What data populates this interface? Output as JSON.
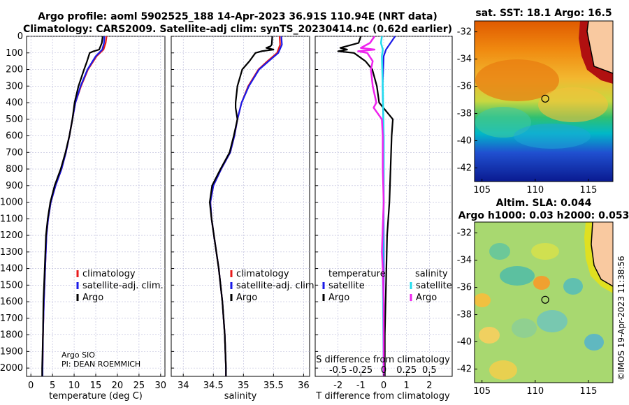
{
  "header": {
    "title_line1": "Argo profile: aoml 5902525_188 14-Apr-2023 36.91S 110.94E (NRT data)",
    "title_line2": "Climatology: CARS2009. Satellite-adj clim: synTS_20230414.nc (0.62d earlier)"
  },
  "colors": {
    "climatology": "#e8191a",
    "satellite_adj": "#1a1ae8",
    "argo": "#000000",
    "salinity_satellite": "#22ddee",
    "salinity_argo": "#ee22ee",
    "grid": "#b8b8d8"
  },
  "chart_data": [
    {
      "type": "line",
      "panel": "temperature",
      "xlabel": "temperature (deg C)",
      "xlim": [
        -1,
        31
      ],
      "xticks": [
        0,
        5,
        10,
        15,
        20,
        25,
        30
      ],
      "ylim": [
        2050,
        0
      ],
      "yticks": [
        0,
        100,
        200,
        300,
        400,
        500,
        600,
        700,
        800,
        900,
        1000,
        1100,
        1200,
        1300,
        1400,
        1500,
        1600,
        1700,
        1800,
        1900,
        2000
      ],
      "legend": [
        "climatology",
        "satellite-adj. clim.",
        "Argo"
      ],
      "annotation": [
        "Argo SIO",
        "PI: DEAN ROEMMICH"
      ],
      "series": [
        {
          "name": "climatology",
          "depth": [
            0,
            40,
            80,
            120,
            200,
            300,
            400,
            500,
            600,
            700,
            800,
            900,
            1000,
            1100,
            1200,
            1400,
            1600,
            1800,
            2000,
            2050
          ],
          "values": [
            17.5,
            17.3,
            16.8,
            15.2,
            13.2,
            11.6,
            10.3,
            9.6,
            8.9,
            8.1,
            7.1,
            5.7,
            4.6,
            4.0,
            3.6,
            3.3,
            3.0,
            2.8,
            2.7,
            2.7
          ]
        },
        {
          "name": "satellite-adj. clim.",
          "depth": [
            0,
            40,
            80,
            120,
            200,
            300,
            400,
            500,
            600,
            700,
            800,
            900,
            1000,
            1100,
            1200,
            1400,
            1600,
            1800,
            2000,
            2050
          ],
          "values": [
            17.0,
            16.9,
            16.5,
            15.0,
            13.1,
            11.5,
            10.3,
            9.6,
            8.9,
            8.1,
            7.1,
            5.7,
            4.6,
            4.0,
            3.6,
            3.3,
            3.0,
            2.8,
            2.7,
            2.7
          ]
        },
        {
          "name": "Argo",
          "depth": [
            0,
            40,
            80,
            90,
            100,
            150,
            200,
            300,
            400,
            500,
            600,
            700,
            800,
            900,
            1000,
            1100,
            1200,
            1400,
            1600,
            1800,
            2000,
            2050
          ],
          "values": [
            16.6,
            16.4,
            15.8,
            14.5,
            13.6,
            13.0,
            12.3,
            11.0,
            10.1,
            9.6,
            8.9,
            8.0,
            6.9,
            5.5,
            4.5,
            3.9,
            3.5,
            3.2,
            2.9,
            2.8,
            2.6,
            2.6
          ]
        }
      ]
    },
    {
      "type": "line",
      "panel": "salinity",
      "xlabel": "salinity",
      "xlim": [
        33.8,
        36.1
      ],
      "xticks": [
        34,
        34.5,
        35,
        35.5,
        36
      ],
      "xticklabels": [
        "34",
        "34.5",
        "35",
        "35.5",
        "36"
      ],
      "ylim": [
        2050,
        0
      ],
      "legend": [
        "climatology",
        "satellite-adj. clim.",
        "Argo"
      ],
      "series": [
        {
          "name": "climatology",
          "depth": [
            0,
            50,
            100,
            150,
            200,
            300,
            400,
            500,
            600,
            700,
            800,
            900,
            1000,
            1100,
            1200,
            1400,
            1600,
            1800,
            2000,
            2050
          ],
          "values": [
            35.6,
            35.61,
            35.56,
            35.4,
            35.25,
            35.08,
            34.97,
            34.9,
            34.85,
            34.78,
            34.63,
            34.5,
            34.45,
            34.47,
            34.51,
            34.59,
            34.65,
            34.69,
            34.71,
            34.71
          ]
        },
        {
          "name": "satellite-adj. clim.",
          "depth": [
            0,
            50,
            100,
            150,
            200,
            300,
            400,
            500,
            600,
            700,
            800,
            900,
            1000,
            1100,
            1200,
            1400,
            1600,
            1800,
            2000,
            2050
          ],
          "values": [
            35.63,
            35.64,
            35.58,
            35.42,
            35.26,
            35.09,
            34.97,
            34.9,
            34.85,
            34.78,
            34.63,
            34.5,
            34.45,
            34.47,
            34.51,
            34.59,
            34.65,
            34.69,
            34.71,
            34.71
          ]
        },
        {
          "name": "Argo",
          "depth": [
            0,
            50,
            60,
            70,
            80,
            90,
            100,
            150,
            200,
            300,
            400,
            430,
            500,
            600,
            700,
            800,
            900,
            1000,
            1100,
            1200,
            1400,
            1600,
            1800,
            2000,
            2050
          ],
          "values": [
            35.48,
            35.47,
            35.45,
            35.38,
            35.5,
            35.3,
            35.2,
            35.1,
            34.98,
            34.9,
            34.87,
            34.87,
            34.9,
            34.84,
            34.77,
            34.62,
            34.48,
            34.44,
            34.47,
            34.51,
            34.59,
            34.65,
            34.69,
            34.71,
            34.71
          ]
        }
      ]
    },
    {
      "type": "line",
      "panel": "difference",
      "xlabel": "T difference from climatology",
      "xlabel_top": "S difference from climatology",
      "xlim": [
        -3,
        3
      ],
      "xticks": [
        -2,
        -1,
        0,
        1,
        2
      ],
      "xticklabels": [
        "-2",
        "-1",
        "0",
        "1",
        "2"
      ],
      "s_ticks": [
        -0.5,
        -0.25,
        0,
        0.25,
        0.5
      ],
      "s_ticklabels": [
        "-0.5",
        "-0.25",
        "0",
        "0.25",
        "0.5"
      ],
      "ylim": [
        2050,
        0
      ],
      "legend_temperature": {
        "title": "temperature",
        "items": [
          "satellite",
          "Argo"
        ]
      },
      "legend_salinity": {
        "title": "salinity",
        "items": [
          "satellite",
          "Argo"
        ]
      },
      "series": [
        {
          "name": "T satellite",
          "depth": [
            0,
            40,
            80,
            120,
            300,
            600,
            1000,
            2050
          ],
          "values": [
            0.5,
            0.3,
            0.1,
            0,
            -0.05,
            0,
            0,
            0
          ]
        },
        {
          "name": "T Argo",
          "depth": [
            0,
            40,
            70,
            80,
            90,
            100,
            150,
            200,
            300,
            400,
            500,
            600,
            800,
            1000,
            1200,
            1500,
            1800,
            2050
          ],
          "values": [
            -1.0,
            -1.1,
            -1.9,
            -1.6,
            -2.0,
            -1.3,
            -0.8,
            -0.5,
            -0.3,
            -0.2,
            0.4,
            0.35,
            0.3,
            0.25,
            0.15,
            0.1,
            0.05,
            0.05
          ]
        },
        {
          "name": "S satellite",
          "depth": [
            0,
            40,
            80,
            120,
            300,
            600,
            1000,
            1300,
            1400,
            2050
          ],
          "values": [
            -0.02,
            -0.03,
            -0.01,
            -0.02,
            -0.01,
            0,
            0,
            -0.01,
            -0.01,
            0
          ]
        },
        {
          "name": "S Argo",
          "depth": [
            0,
            40,
            70,
            80,
            90,
            100,
            150,
            200,
            300,
            400,
            430,
            500,
            600,
            800,
            1000,
            1300,
            1400,
            1600,
            2050
          ],
          "values": [
            -0.1,
            -0.15,
            -0.25,
            -0.1,
            -0.28,
            -0.18,
            -0.12,
            -0.14,
            -0.12,
            -0.08,
            -0.11,
            -0.02,
            -0.01,
            -0.01,
            0,
            -0.02,
            -0.01,
            0,
            0
          ]
        }
      ]
    },
    {
      "type": "heatmap",
      "panel": "sst_map",
      "title": "sat. SST: 18.1 Argo: 16.5",
      "xticks": [
        105,
        110,
        115
      ],
      "yticks": [
        -32,
        -34,
        -36,
        -38,
        -40,
        -42
      ],
      "xlim": [
        104.3,
        117.3
      ],
      "ylim": [
        -43,
        -31.2
      ],
      "marker": {
        "lon": 110.94,
        "lat": -36.91
      }
    },
    {
      "type": "heatmap",
      "panel": "sla_map",
      "title_line1": "Altim. SLA: 0.044",
      "title_line2": "Argo h1000: 0.03 h2000: 0.053",
      "xticks": [
        105,
        110,
        115
      ],
      "yticks": [
        -32,
        -34,
        -36,
        -38,
        -40,
        -42
      ],
      "xlim": [
        104.3,
        117.3
      ],
      "ylim": [
        -43,
        -31.2
      ],
      "marker": {
        "lon": 110.94,
        "lat": -36.91
      }
    }
  ],
  "stamp": "©IMOS 19-Apr-2023 11:38:56"
}
